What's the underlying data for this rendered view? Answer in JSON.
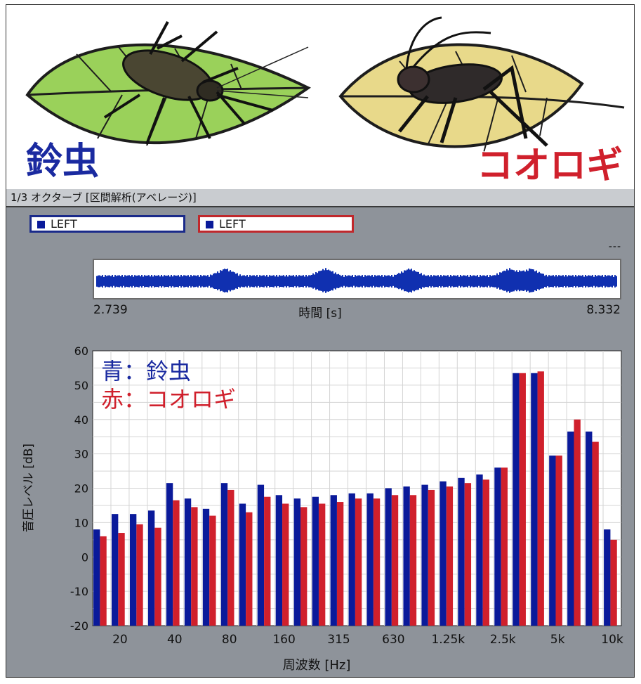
{
  "header": {
    "bug_left_name": "鈴虫",
    "bug_right_name": "コオロギ"
  },
  "mode_label": "1/3 オクターブ [区間解析(アベレージ)]",
  "legend": {
    "left_channel": "LEFT",
    "right_channel": "LEFT",
    "colors": {
      "blue": "#0a1a9a",
      "red": "#d0202c"
    }
  },
  "indicator": "---",
  "waveform": {
    "time_start": "2.739",
    "time_end": "8.332",
    "axis_label": "時間 [s]",
    "color": "#1030b0"
  },
  "chart_data": {
    "type": "bar",
    "ylabel": "音圧レベル [dB]",
    "xlabel": "周波数 [Hz]",
    "ylim": [
      -20,
      60
    ],
    "yticks": [
      60,
      50,
      40,
      30,
      20,
      10,
      0,
      -10,
      -20
    ],
    "grid": true,
    "annotation_lines": [
      "青：鈴虫",
      "赤：コオロギ"
    ],
    "xtick_labels": [
      {
        "label": "20",
        "index": 1
      },
      {
        "label": "40",
        "index": 4
      },
      {
        "label": "80",
        "index": 7
      },
      {
        "label": "160",
        "index": 10
      },
      {
        "label": "315",
        "index": 13
      },
      {
        "label": "630",
        "index": 16
      },
      {
        "label": "1.25k",
        "index": 19
      },
      {
        "label": "2.5k",
        "index": 22
      },
      {
        "label": "5k",
        "index": 25
      },
      {
        "label": "10k",
        "index": 28
      }
    ],
    "series": [
      {
        "color": "#0a1a9a",
        "values": [
          8,
          12.5,
          12.5,
          13.5,
          21.5,
          17,
          14,
          21.5,
          15.5,
          21,
          18,
          17,
          17.5,
          18,
          18.5,
          18.5,
          20,
          20.5,
          21,
          22,
          23,
          24,
          26,
          53.5,
          53.5,
          29.5,
          36.5,
          36.5,
          8
        ]
      },
      {
        "color": "#d0202c",
        "values": [
          6,
          7,
          9.5,
          8.5,
          16.5,
          14.5,
          12,
          19.5,
          13,
          17.5,
          15.5,
          14.5,
          15.5,
          16,
          17,
          17,
          18,
          18,
          19.5,
          20.5,
          21.5,
          22.5,
          26,
          53.5,
          54,
          29.5,
          40,
          33.5,
          5
        ]
      }
    ]
  }
}
